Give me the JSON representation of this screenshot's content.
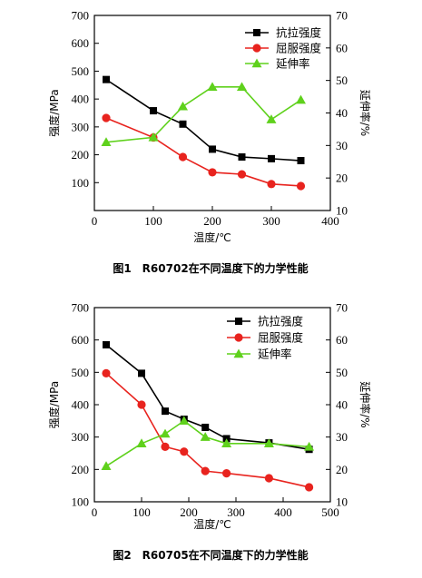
{
  "chart_data": [
    {
      "type": "line",
      "caption": "图1　R60702在不同温度下的力学性能",
      "xlabel": "温度/℃",
      "ylabel_left": "强度/MPa",
      "ylabel_right": "延伸率/%",
      "xlim": [
        0,
        400
      ],
      "ylim_left": [
        0,
        700
      ],
      "ylim_right": [
        10,
        70
      ],
      "xticks": [
        0,
        100,
        200,
        300,
        400
      ],
      "yticks_left": [
        100,
        200,
        300,
        400,
        500,
        600,
        700
      ],
      "yticks_right": [
        10,
        20,
        30,
        40,
        50,
        60,
        70
      ],
      "legend_position": "top-right",
      "series": [
        {
          "name": "抗拉强度",
          "axis": "left",
          "color": "#000000",
          "marker": "square",
          "x": [
            20,
            100,
            150,
            200,
            250,
            300,
            350
          ],
          "y": [
            470,
            358,
            310,
            220,
            192,
            186,
            179
          ]
        },
        {
          "name": "屈服强度",
          "axis": "left",
          "color": "#e8231e",
          "marker": "circle",
          "x": [
            20,
            100,
            150,
            200,
            250,
            300,
            350
          ],
          "y": [
            332,
            262,
            192,
            137,
            130,
            95,
            88
          ]
        },
        {
          "name": "延伸率",
          "axis": "right",
          "color": "#5fd11c",
          "marker": "triangle",
          "x": [
            20,
            100,
            150,
            200,
            250,
            300,
            350
          ],
          "y": [
            31,
            32.5,
            42,
            48,
            48,
            38,
            44
          ]
        }
      ]
    },
    {
      "type": "line",
      "caption": "图2　R60705在不同温度下的力学性能",
      "xlabel": "温度/℃",
      "ylabel_left": "强度/MPa",
      "ylabel_right": "延伸率/%",
      "xlim": [
        0,
        500
      ],
      "ylim_left": [
        100,
        700
      ],
      "ylim_right": [
        10,
        70
      ],
      "xticks": [
        0,
        100,
        200,
        300,
        400,
        500
      ],
      "yticks_left": [
        100,
        200,
        300,
        400,
        500,
        600,
        700
      ],
      "yticks_right": [
        10,
        20,
        30,
        40,
        50,
        60,
        70
      ],
      "legend_position": "top-right",
      "series": [
        {
          "name": "抗拉强度",
          "axis": "left",
          "color": "#000000",
          "marker": "square",
          "x": [
            25,
            100,
            150,
            190,
            235,
            280,
            370,
            455
          ],
          "y": [
            585,
            497,
            380,
            355,
            330,
            295,
            282,
            262
          ]
        },
        {
          "name": "屈服强度",
          "axis": "left",
          "color": "#e8231e",
          "marker": "circle",
          "x": [
            25,
            100,
            150,
            190,
            235,
            280,
            370,
            455
          ],
          "y": [
            497,
            400,
            270,
            255,
            195,
            188,
            173,
            145
          ]
        },
        {
          "name": "延伸率",
          "axis": "right",
          "color": "#5fd11c",
          "marker": "triangle",
          "x": [
            25,
            100,
            150,
            190,
            235,
            280,
            370,
            455
          ],
          "y": [
            21,
            28,
            31,
            35,
            30,
            28,
            28,
            27
          ]
        }
      ]
    }
  ]
}
